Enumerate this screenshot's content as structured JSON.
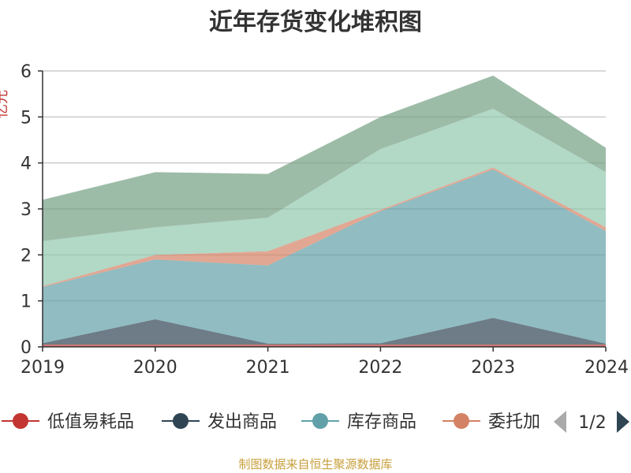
{
  "chart_data": {
    "type": "area",
    "stacked": true,
    "title": "近年存货变化堆积图",
    "ylabel": "亿元",
    "x": [
      "2019",
      "2020",
      "2021",
      "2022",
      "2023",
      "2024"
    ],
    "ylim": [
      0,
      6
    ],
    "yticks": [
      0,
      1,
      2,
      3,
      4,
      5,
      6
    ],
    "grid": true,
    "legend": {
      "position": "bottom",
      "page": "1/2",
      "visible": [
        "低值易耗品",
        "发出商品",
        "库存商品",
        "委托加"
      ]
    },
    "series": [
      {
        "name": "低值易耗品",
        "color": "#c23531",
        "values": [
          0.05,
          0.05,
          0.05,
          0.05,
          0.05,
          0.05
        ]
      },
      {
        "name": "发出商品",
        "color": "#2f4554",
        "values": [
          0.03,
          0.55,
          0.02,
          0.03,
          0.58,
          0.02
        ]
      },
      {
        "name": "库存商品",
        "color": "#61a0a8",
        "values": [
          1.22,
          1.3,
          1.7,
          2.87,
          3.23,
          2.45
        ]
      },
      {
        "name": "委托加工物资",
        "color": "#d48265",
        "values": [
          0.02,
          0.1,
          0.31,
          0.03,
          0.04,
          0.08
        ]
      },
      {
        "name": "",
        "color": "#91c7ae",
        "values": [
          0.98,
          0.6,
          0.73,
          1.32,
          1.28,
          1.2
        ]
      },
      {
        "name": "",
        "color": "#749f83",
        "values": [
          0.9,
          1.2,
          0.95,
          0.7,
          0.72,
          0.53
        ]
      }
    ]
  },
  "source": "制图数据来自恒生聚源数据库"
}
